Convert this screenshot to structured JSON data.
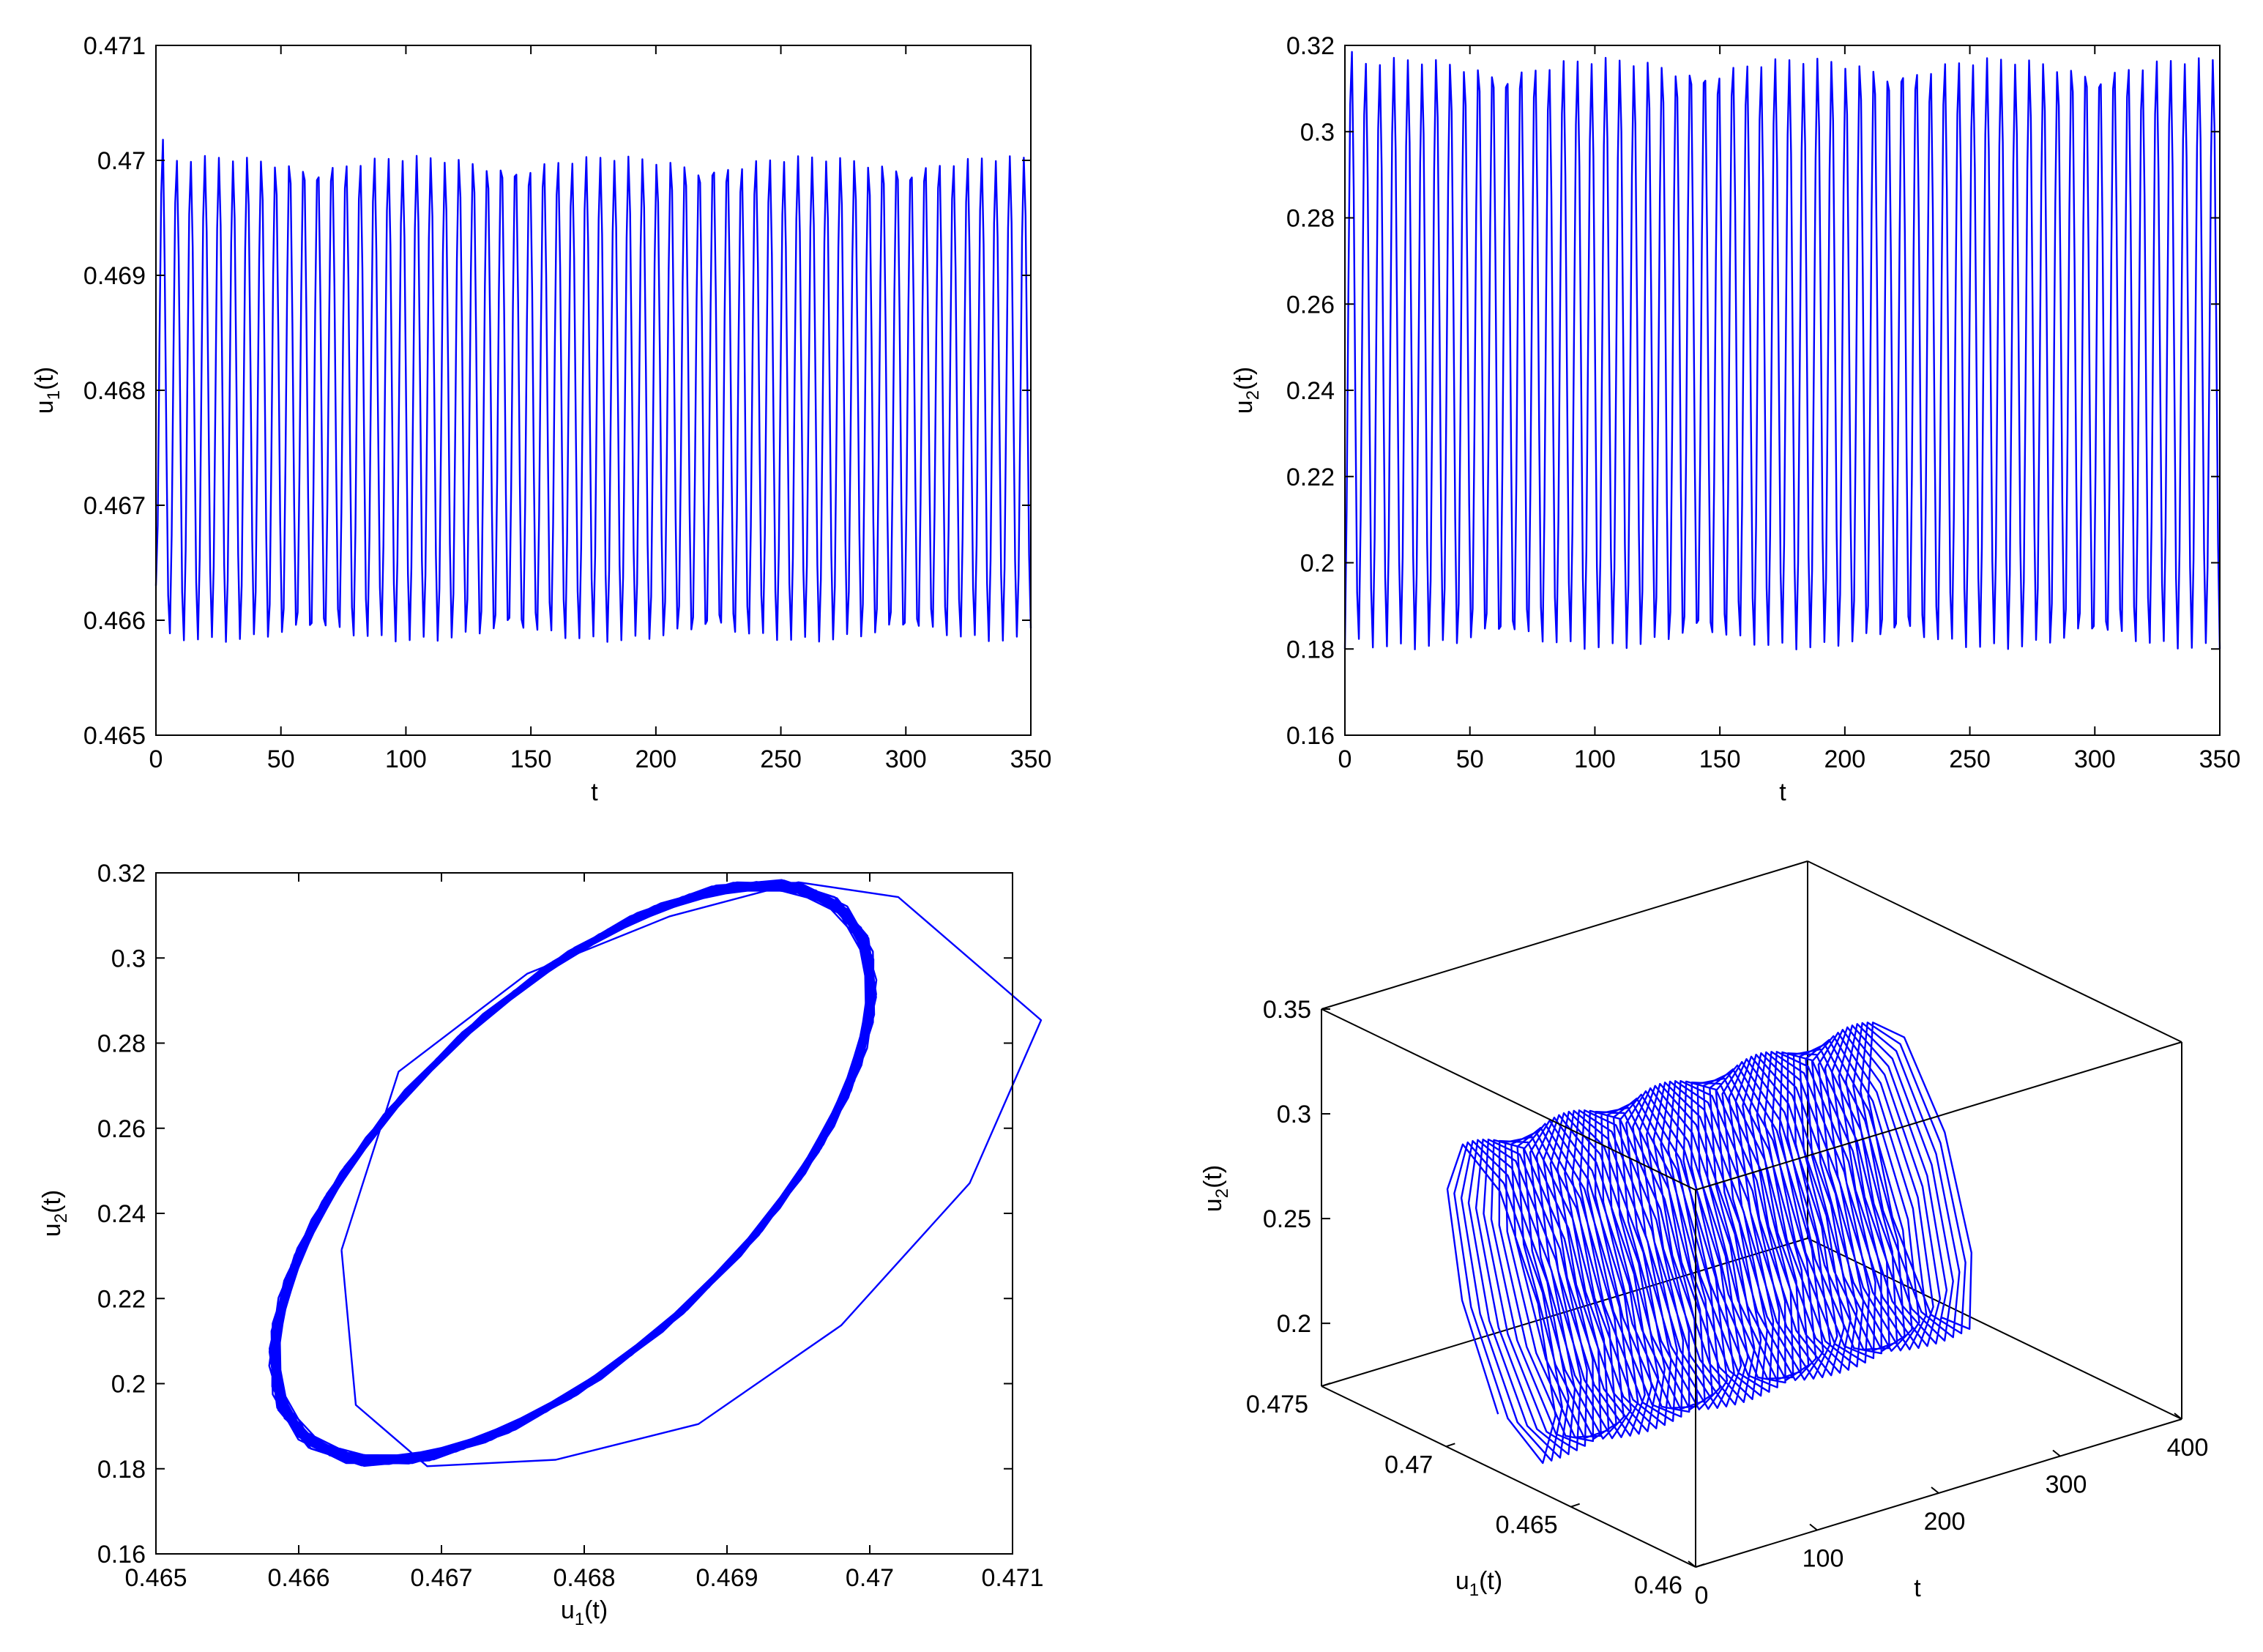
{
  "chart_data": [
    {
      "type": "line",
      "id": "u1-time",
      "xlabel": "t",
      "ylabel": "u",
      "ylabel_sub": "1",
      "ylabel_suffix": "(t)",
      "xlim": [
        0,
        350
      ],
      "ylim": [
        0.465,
        0.471
      ],
      "xticks": [
        "0",
        "50",
        "100",
        "150",
        "200",
        "250",
        "300",
        "350"
      ],
      "xtick_values": [
        0,
        50,
        100,
        150,
        200,
        250,
        300,
        350
      ],
      "yticks": [
        "0.465",
        "0.466",
        "0.467",
        "0.468",
        "0.469",
        "0.47",
        "0.471"
      ],
      "ytick_values": [
        0.465,
        0.466,
        0.467,
        0.468,
        0.469,
        0.47,
        0.471
      ],
      "grid": false,
      "series": [
        {
          "color": "#0000ff",
          "start_value": 0.4663,
          "period": 5.65,
          "peak": 0.47002,
          "trough": 0.46583,
          "first_peak": 0.47018,
          "t_end": 350,
          "end_value": 0.46593
        }
      ]
    },
    {
      "type": "line",
      "id": "u2-time",
      "xlabel": "t",
      "ylabel": "u",
      "ylabel_sub": "2",
      "ylabel_suffix": "(t)",
      "xlim": [
        0,
        350
      ],
      "ylim": [
        0.16,
        0.32
      ],
      "xticks": [
        "0",
        "50",
        "100",
        "150",
        "200",
        "250",
        "300",
        "350"
      ],
      "xtick_values": [
        0,
        50,
        100,
        150,
        200,
        250,
        300,
        350
      ],
      "yticks": [
        "0.16",
        "0.18",
        "0.2",
        "0.22",
        "0.24",
        "0.26",
        "0.28",
        "0.3",
        "0.32"
      ],
      "ytick_values": [
        0.16,
        0.18,
        0.2,
        0.22,
        0.24,
        0.26,
        0.28,
        0.3,
        0.32
      ],
      "grid": false,
      "series": [
        {
          "color": "#0000ff",
          "start_value": 0.18,
          "period": 5.65,
          "peak": 0.3165,
          "trough": 0.1805,
          "first_peak": 0.3185,
          "t_end": 350,
          "end_value": 0.18
        }
      ]
    },
    {
      "type": "line",
      "id": "phase-portrait",
      "xlabel": "u",
      "xlabel_sub": "1",
      "xlabel_suffix": "(t)",
      "ylabel": "u",
      "ylabel_sub": "2",
      "ylabel_suffix": "(t)",
      "xlim": [
        0.465,
        0.471
      ],
      "ylim": [
        0.16,
        0.32
      ],
      "xticks": [
        "0.465",
        "0.466",
        "0.467",
        "0.468",
        "0.469",
        "0.47",
        "0.471"
      ],
      "xtick_values": [
        0.465,
        0.466,
        0.467,
        0.468,
        0.469,
        0.47,
        0.471
      ],
      "yticks": [
        "0.16",
        "0.18",
        "0.2",
        "0.22",
        "0.24",
        "0.26",
        "0.28",
        "0.3",
        "0.32"
      ],
      "ytick_values": [
        0.16,
        0.18,
        0.2,
        0.22,
        0.24,
        0.26,
        0.28,
        0.3,
        0.32
      ],
      "grid": false,
      "series": [
        {
          "color": "#0000ff",
          "transient": [
            [
              0.4663,
              0.2314
            ],
            [
              0.4667,
              0.2733
            ],
            [
              0.4676,
              0.2963
            ],
            [
              0.4686,
              0.3098
            ],
            [
              0.4695,
              0.3178
            ],
            [
              0.4702,
              0.3143
            ],
            [
              0.4712,
              0.2854
            ],
            [
              0.4707,
              0.2471
            ],
            [
              0.4698,
              0.2137
            ],
            [
              0.4688,
              0.1905
            ],
            [
              0.4678,
              0.1821
            ],
            [
              0.4669,
              0.1806
            ],
            [
              0.4664,
              0.195
            ],
            [
              0.4663,
              0.2314
            ]
          ],
          "limit_cycle_center": [
            0.46792,
            0.2495
          ],
          "u1_amplitude": 0.0021,
          "u2_amplitude": 0.068,
          "phase_lag_deg": 50
        }
      ]
    },
    {
      "type": "line",
      "id": "3d-trajectory",
      "xlabel": "t",
      "ylabel": "u",
      "ylabel_sub": "1",
      "ylabel_suffix": "(t)",
      "zlabel": "u",
      "zlabel_sub": "2",
      "zlabel_suffix": "(t)",
      "xlim": [
        0,
        400
      ],
      "ylim": [
        0.46,
        0.475
      ],
      "zlim": [
        0.17,
        0.35
      ],
      "xticks": [
        "0",
        "100",
        "200",
        "300",
        "400"
      ],
      "xtick_values": [
        0,
        100,
        200,
        300,
        400
      ],
      "yticks": [
        "0.46",
        "0.465",
        "0.47",
        "0.475"
      ],
      "ytick_values": [
        0.46,
        0.465,
        0.47,
        0.475
      ],
      "zticks": [
        "0.2",
        "0.25",
        "0.3",
        "0.35"
      ],
      "ztick_values": [
        0.2,
        0.25,
        0.3,
        0.35
      ],
      "grid": false,
      "series": [
        {
          "color": "#0000ff",
          "t_end": 350,
          "period": 5.65
        }
      ]
    }
  ]
}
